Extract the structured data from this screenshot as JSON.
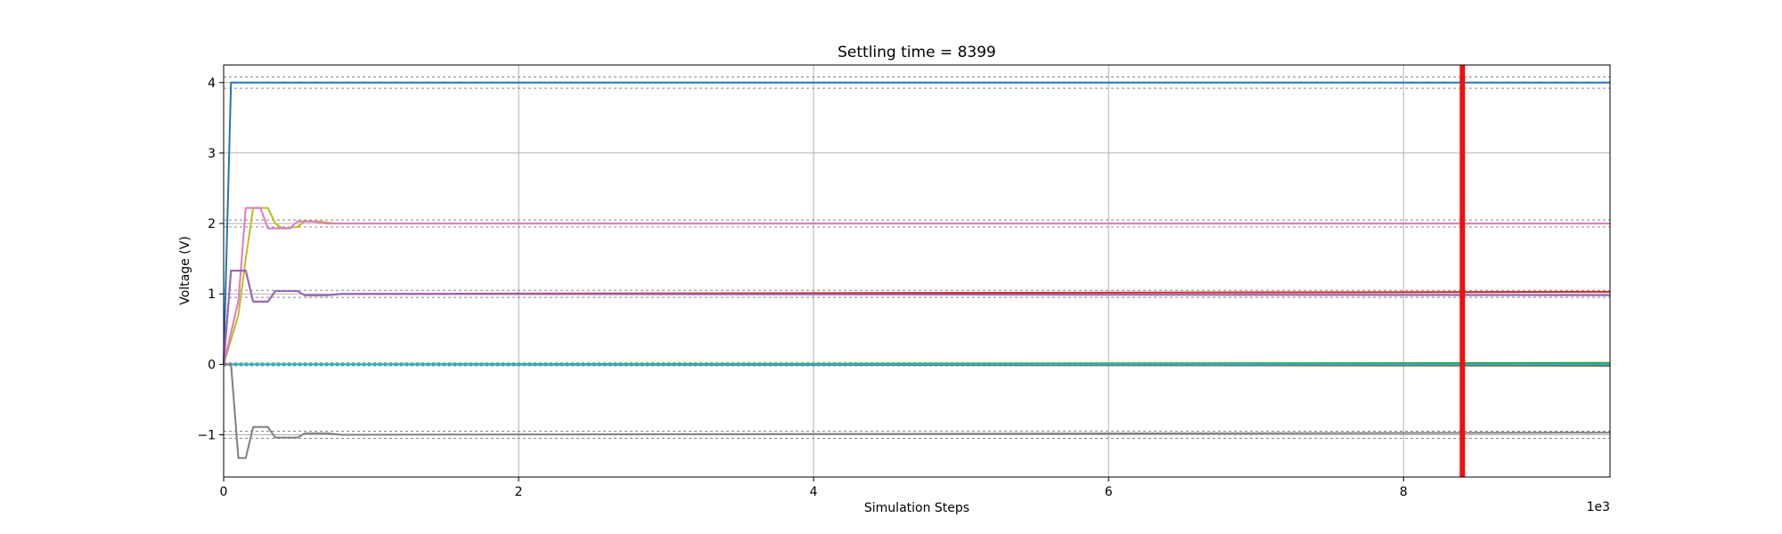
{
  "chart_data": {
    "type": "line",
    "title": "Settling time = 8399",
    "xlabel": "Simulation Steps",
    "ylabel": "Voltage (V)",
    "x_offset_label": "1e3",
    "xlim": [
      0,
      9.4
    ],
    "ylim": [
      -1.6,
      4.25
    ],
    "xticks": [
      0,
      2,
      4,
      6,
      8
    ],
    "yticks": [
      -1,
      0,
      1,
      2,
      3,
      4
    ],
    "grid": true,
    "settling_marker": {
      "x": 8.399,
      "color": "#ee1111"
    },
    "tolerance_bands": [
      {
        "center": 4,
        "half_width": 0.08
      },
      {
        "center": 2,
        "half_width": 0.05
      },
      {
        "center": 1,
        "half_width": 0.05
      },
      {
        "center": 0,
        "half_width": 0.02
      },
      {
        "center": -1,
        "half_width": 0.05
      }
    ],
    "series": [
      {
        "color": "#1f77b4",
        "points": [
          [
            0,
            0
          ],
          [
            0.05,
            4
          ],
          [
            9.4,
            4
          ]
        ]
      },
      {
        "color": "#bcbd22",
        "points": [
          [
            0,
            0
          ],
          [
            0.1,
            0.7
          ],
          [
            0.15,
            1.5
          ],
          [
            0.2,
            2.22
          ],
          [
            0.25,
            2.22
          ],
          [
            0.3,
            2.22
          ],
          [
            0.35,
            2.0
          ],
          [
            0.4,
            1.93
          ],
          [
            0.5,
            1.95
          ],
          [
            0.55,
            2.03
          ],
          [
            0.65,
            2.03
          ],
          [
            0.75,
            2.0
          ],
          [
            1,
            2.0
          ],
          [
            9.4,
            2.0
          ]
        ]
      },
      {
        "color": "#e377c2",
        "points": [
          [
            0,
            0
          ],
          [
            0.1,
            0.9
          ],
          [
            0.15,
            2.22
          ],
          [
            0.25,
            2.22
          ],
          [
            0.3,
            1.93
          ],
          [
            0.45,
            1.93
          ],
          [
            0.5,
            2.03
          ],
          [
            0.6,
            2.03
          ],
          [
            0.7,
            2.0
          ],
          [
            1,
            2.0
          ],
          [
            9.4,
            2.0
          ]
        ]
      },
      {
        "color": "#d62728",
        "points": [
          [
            0,
            0
          ],
          [
            0.05,
            1.33
          ],
          [
            0.15,
            1.33
          ],
          [
            0.2,
            0.89
          ],
          [
            0.3,
            0.89
          ],
          [
            0.35,
            1.04
          ],
          [
            0.5,
            1.04
          ],
          [
            0.55,
            0.98
          ],
          [
            0.7,
            0.98
          ],
          [
            0.8,
            1.0
          ],
          [
            9.4,
            1.03
          ]
        ]
      },
      {
        "color": "#9467bd",
        "points": [
          [
            0,
            0
          ],
          [
            0.05,
            1.33
          ],
          [
            0.15,
            1.33
          ],
          [
            0.2,
            0.89
          ],
          [
            0.3,
            0.89
          ],
          [
            0.35,
            1.04
          ],
          [
            0.5,
            1.04
          ],
          [
            0.55,
            0.98
          ],
          [
            0.7,
            0.98
          ],
          [
            0.8,
            1.0
          ],
          [
            9.4,
            0.98
          ]
        ]
      },
      {
        "color": "#2ca02c",
        "points": [
          [
            0,
            0
          ],
          [
            9.4,
            0.02
          ]
        ]
      },
      {
        "color": "#8c564b",
        "points": [
          [
            0,
            0
          ],
          [
            9.4,
            -0.02
          ]
        ]
      },
      {
        "color": "#17becf",
        "points": [
          [
            0,
            0
          ],
          [
            9.4,
            0
          ]
        ]
      },
      {
        "color": "#7f7f7f",
        "points": [
          [
            0,
            0
          ],
          [
            0.05,
            0
          ],
          [
            0.1,
            -1.33
          ],
          [
            0.15,
            -1.33
          ],
          [
            0.2,
            -0.89
          ],
          [
            0.3,
            -0.89
          ],
          [
            0.35,
            -1.04
          ],
          [
            0.5,
            -1.04
          ],
          [
            0.55,
            -0.98
          ],
          [
            0.7,
            -0.98
          ],
          [
            0.8,
            -1.0
          ],
          [
            9.4,
            -0.97
          ]
        ]
      }
    ]
  }
}
